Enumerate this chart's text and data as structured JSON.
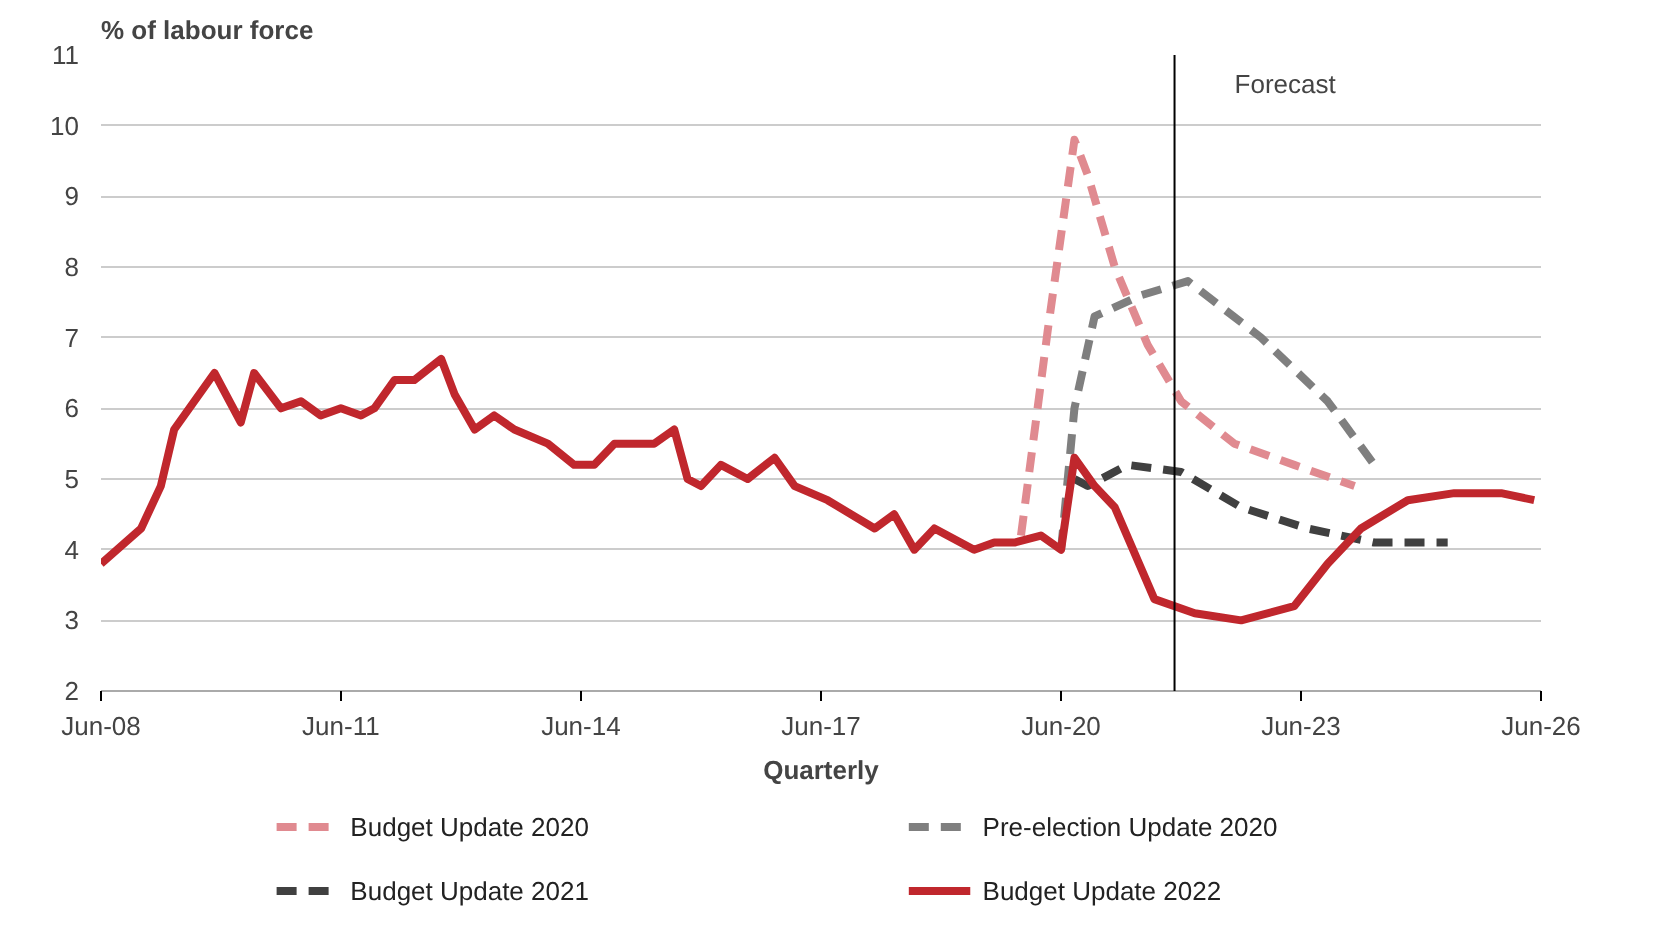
{
  "chart_data": {
    "type": "line",
    "ylabel": "% of labour force",
    "xlabel": "Quarterly",
    "xlim": [
      "2008-06",
      "2026-06"
    ],
    "xticks": [
      {
        "value": "2008-06",
        "label": "Jun-08"
      },
      {
        "value": "2011-06",
        "label": "Jun-11"
      },
      {
        "value": "2014-06",
        "label": "Jun-14"
      },
      {
        "value": "2017-06",
        "label": "Jun-17"
      },
      {
        "value": "2020-06",
        "label": "Jun-20"
      },
      {
        "value": "2023-06",
        "label": "Jun-23"
      },
      {
        "value": "2026-06",
        "label": "Jun-26"
      }
    ],
    "ylim": [
      2,
      11
    ],
    "yticks": [
      2,
      3,
      4,
      5,
      6,
      7,
      8,
      9,
      10,
      11
    ],
    "grid": "y",
    "legend": "bottom",
    "ref_lines": [
      {
        "axis": "x",
        "value": "2021-11",
        "label": "Forecast",
        "color": "#000000"
      }
    ],
    "series": [
      {
        "name": "Budget Update 2020",
        "color": "#e08a90",
        "line_style": "dashed",
        "x": [
          "2019-12",
          "2020-04",
          "2020-08",
          "2020-10",
          "2021-02",
          "2021-07",
          "2021-12",
          "2022-08",
          "2023-05",
          "2024-02"
        ],
        "values": [
          4.2,
          7.1,
          9.8,
          9.3,
          8.0,
          6.9,
          6.1,
          5.5,
          5.2,
          4.9
        ]
      },
      {
        "name": "Pre-election Update 2020",
        "color": "#7f7f7f",
        "line_style": "dashed",
        "x": [
          "2020-06",
          "2020-08",
          "2020-11",
          "2021-06",
          "2022-01",
          "2022-12",
          "2023-10",
          "2024-05"
        ],
        "values": [
          4.0,
          6.0,
          7.3,
          7.6,
          7.8,
          7.0,
          6.1,
          5.2
        ]
      },
      {
        "name": "Budget Update 2021",
        "color": "#404040",
        "line_style": "dashed",
        "x": [
          "2020-08",
          "2020-10",
          "2021-04",
          "2021-12",
          "2022-09",
          "2023-07",
          "2024-05",
          "2025-04"
        ],
        "values": [
          5.0,
          4.9,
          5.2,
          5.1,
          4.6,
          4.3,
          4.1,
          4.1
        ]
      },
      {
        "name": "Budget Update 2022",
        "color": "#c0272d",
        "line_style": "solid",
        "x": [
          "2008-06",
          "2008-12",
          "2009-03",
          "2009-05",
          "2009-08",
          "2009-11",
          "2010-03",
          "2010-05",
          "2010-09",
          "2010-12",
          "2011-03",
          "2011-06",
          "2011-09",
          "2011-11",
          "2012-02",
          "2012-05",
          "2012-09",
          "2012-11",
          "2013-02",
          "2013-05",
          "2013-08",
          "2014-01",
          "2014-05",
          "2014-08",
          "2014-11",
          "2015-05",
          "2015-08",
          "2015-10",
          "2015-12",
          "2016-03",
          "2016-07",
          "2016-11",
          "2017-02",
          "2017-07",
          "2018-02",
          "2018-05",
          "2018-08",
          "2018-11",
          "2019-05",
          "2019-08",
          "2019-11",
          "2020-03",
          "2020-06",
          "2020-08",
          "2020-11",
          "2021-02",
          "2021-08",
          "2022-02",
          "2022-09",
          "2023-05",
          "2023-10",
          "2024-03",
          "2024-10",
          "2025-05",
          "2025-12",
          "2026-05"
        ],
        "values": [
          3.8,
          4.3,
          4.9,
          5.7,
          6.1,
          6.5,
          5.8,
          6.5,
          6.0,
          6.1,
          5.9,
          6.0,
          5.9,
          6.0,
          6.4,
          6.4,
          6.7,
          6.2,
          5.7,
          5.9,
          5.7,
          5.5,
          5.2,
          5.2,
          5.5,
          5.5,
          5.7,
          5.0,
          4.9,
          5.2,
          5.0,
          5.3,
          4.9,
          4.7,
          4.3,
          4.5,
          4.0,
          4.3,
          4.0,
          4.1,
          4.1,
          4.2,
          4.0,
          5.3,
          4.9,
          4.6,
          3.3,
          3.1,
          3.0,
          3.2,
          3.8,
          4.3,
          4.7,
          4.8,
          4.8,
          4.7
        ]
      }
    ]
  }
}
